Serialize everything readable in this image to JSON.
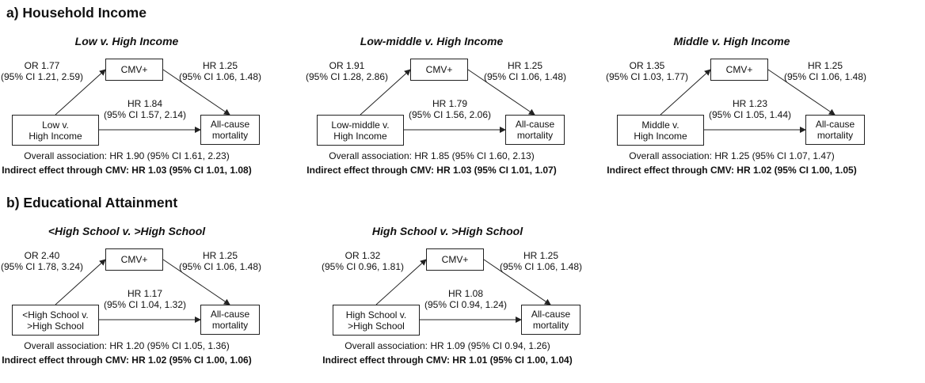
{
  "section_a": {
    "title": "a) Household Income"
  },
  "section_b": {
    "title": "b) Educational Attainment"
  },
  "panels": [
    {
      "title": "Low v. High Income",
      "exposure_line1": "Low v.",
      "exposure_line2": "High Income",
      "mediator": "CMV+",
      "outcome_line1": "All-cause",
      "outcome_line2": "mortality",
      "or_line1": "OR 1.77",
      "or_line2": "(95% CI 1.21, 2.59)",
      "hr_mediator_line1": "HR 1.25",
      "hr_mediator_line2": "(95% CI 1.06, 1.48)",
      "hr_direct_line1": "HR 1.84",
      "hr_direct_line2": "(95% CI 1.57, 2.14)",
      "overall": "Overall association: HR 1.90 (95% CI 1.61, 2.23)",
      "indirect": "Indirect effect through CMV: HR 1.03 (95% CI 1.01, 1.08)"
    },
    {
      "title": "Low-middle v. High Income",
      "exposure_line1": "Low-middle v.",
      "exposure_line2": "High Income",
      "mediator": "CMV+",
      "outcome_line1": "All-cause",
      "outcome_line2": "mortality",
      "or_line1": "OR 1.91",
      "or_line2": "(95% CI 1.28, 2.86)",
      "hr_mediator_line1": "HR 1.25",
      "hr_mediator_line2": "(95% CI 1.06, 1.48)",
      "hr_direct_line1": "HR 1.79",
      "hr_direct_line2": "(95% CI 1.56, 2.06)",
      "overall": "Overall association: HR 1.85 (95% CI 1.60, 2.13)",
      "indirect": "Indirect effect through CMV: HR 1.03 (95% CI 1.01, 1.07)"
    },
    {
      "title": "Middle v. High Income",
      "exposure_line1": "Middle v.",
      "exposure_line2": "High Income",
      "mediator": "CMV+",
      "outcome_line1": "All-cause",
      "outcome_line2": "mortality",
      "or_line1": "OR 1.35",
      "or_line2": "(95% CI 1.03, 1.77)",
      "hr_mediator_line1": "HR 1.25",
      "hr_mediator_line2": "(95% CI 1.06, 1.48)",
      "hr_direct_line1": "HR 1.23",
      "hr_direct_line2": "(95% CI 1.05, 1.44)",
      "overall": "Overall association: HR 1.25 (95% CI 1.07, 1.47)",
      "indirect": "Indirect effect through CMV: HR 1.02 (95% CI 1.00, 1.05)"
    },
    {
      "title": "<High School v. >High School",
      "exposure_line1": "<High School v.",
      "exposure_line2": ">High School",
      "mediator": "CMV+",
      "outcome_line1": "All-cause",
      "outcome_line2": "mortality",
      "or_line1": "OR 2.40",
      "or_line2": "(95% CI 1.78, 3.24)",
      "hr_mediator_line1": "HR 1.25",
      "hr_mediator_line2": "(95% CI 1.06, 1.48)",
      "hr_direct_line1": "HR 1.17",
      "hr_direct_line2": "(95% CI 1.04, 1.32)",
      "overall": "Overall association: HR 1.20 (95% CI 1.05, 1.36)",
      "indirect": "Indirect effect through CMV: HR 1.02 (95% CI 1.00, 1.06)"
    },
    {
      "title": "High School v. >High School",
      "exposure_line1": "High School v.",
      "exposure_line2": ">High School",
      "mediator": "CMV+",
      "outcome_line1": "All-cause",
      "outcome_line2": "mortality",
      "or_line1": "OR 1.32",
      "or_line2": "(95% CI 0.96, 1.81)",
      "hr_mediator_line1": "HR 1.25",
      "hr_mediator_line2": "(95% CI 1.06, 1.48)",
      "hr_direct_line1": "HR 1.08",
      "hr_direct_line2": "(95% CI 0.94, 1.24)",
      "overall": "Overall association: HR 1.09 (95% CI 0.94, 1.26)",
      "indirect": "Indirect effect through CMV: HR 1.01 (95% CI 1.00, 1.04)"
    }
  ]
}
